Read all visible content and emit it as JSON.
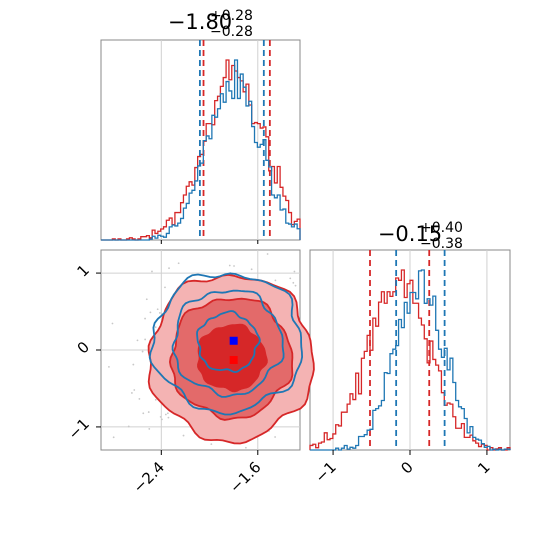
{
  "chart_data": {
    "type": "corner",
    "colors": {
      "blue": "#1f77b4",
      "red": "#d62728",
      "marker_blue": "#0000ff",
      "marker_red": "#ff0000"
    },
    "param1": {
      "title_main": "−1.80",
      "title_plus": "+0.28",
      "title_minus": "−0.28",
      "range": [
        -2.9,
        -1.25
      ],
      "ticks": [
        -2.4,
        -1.6
      ],
      "tick_labels": [
        "−2.4",
        "−1.6"
      ],
      "quantiles_blue": [
        -2.08,
        -1.55
      ],
      "quantiles_red": [
        -2.05,
        -1.5
      ],
      "hist_peak_blue": -1.8,
      "hist_peak_red": -1.8,
      "hist_sigma_blue": 0.22,
      "hist_sigma_red": 0.25
    },
    "param2": {
      "title_main": "−0.15",
      "title_plus": "+0.40",
      "title_minus": "−0.38",
      "range": [
        -1.3,
        1.3
      ],
      "ticks": [
        -1,
        0,
        1
      ],
      "tick_labels": [
        "−1",
        "0",
        "1"
      ],
      "quantiles_blue": [
        -0.18,
        0.45
      ],
      "quantiles_red": [
        -0.52,
        0.25
      ],
      "hist_peak_blue": 0.12,
      "hist_peak_red": -0.15,
      "hist_sigma_blue": 0.32,
      "hist_sigma_red": 0.4
    },
    "scatter_markers": [
      {
        "series": "blue",
        "x": -1.8,
        "y": 0.12
      },
      {
        "series": "red",
        "x": -1.8,
        "y": -0.13
      }
    ],
    "contours": {
      "blue": {
        "center": [
          -1.85,
          0.1
        ],
        "widths_x": [
          0.25,
          0.45,
          0.62
        ],
        "widths_y": [
          0.38,
          0.68,
          0.9
        ]
      },
      "red": {
        "center": [
          -1.82,
          -0.1
        ],
        "widths_x": [
          0.28,
          0.5,
          0.68
        ],
        "widths_y": [
          0.42,
          0.78,
          1.08
        ]
      }
    },
    "grid": true
  }
}
